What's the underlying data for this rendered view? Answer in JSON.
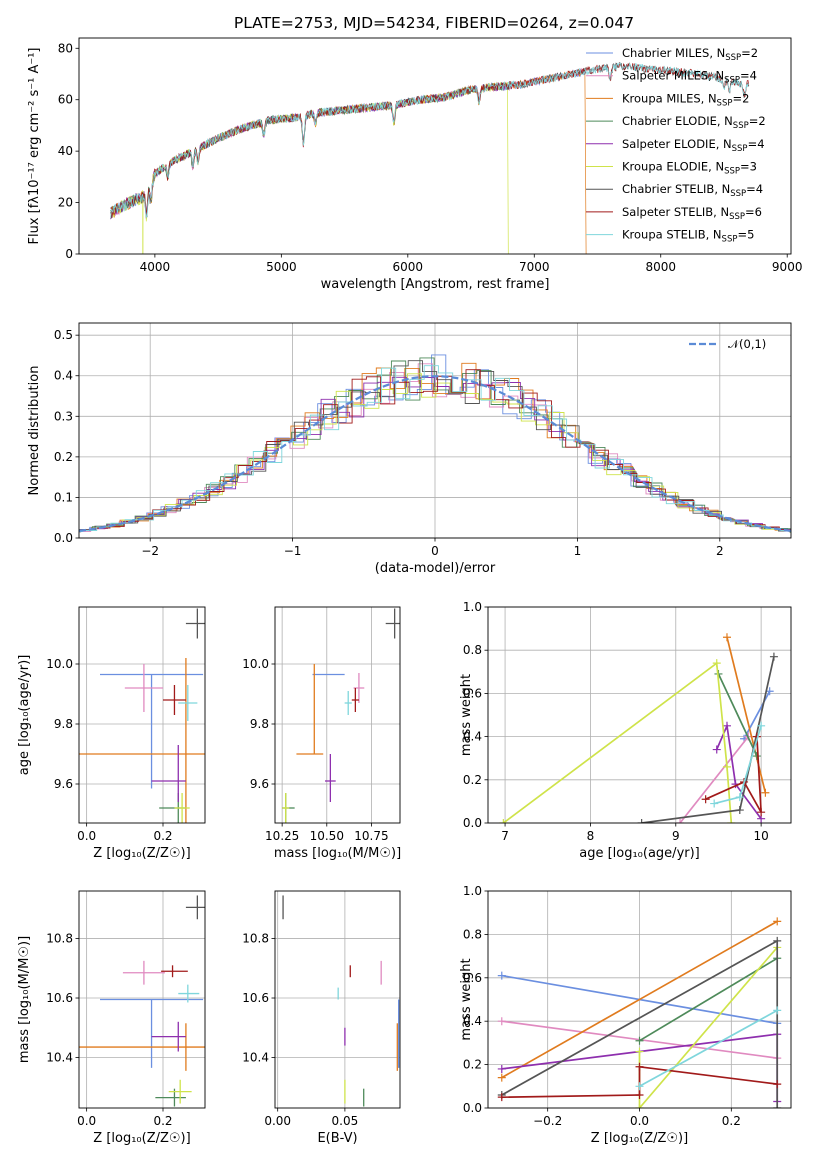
{
  "title": "PLATE=2753, MJD=54234, FIBERID=0264, z=0.047",
  "colors": {
    "Chabrier MILES": "#6b8fe0",
    "Salpeter MILES": "#e08ac0",
    "Kroupa MILES": "#e07b1e",
    "Chabrier ELODIE": "#4e8a5a",
    "Salpeter ELODIE": "#8e2fae",
    "Kroupa ELODIE": "#cfe34a",
    "Chabrier STELIB": "#555555",
    "Salpeter STELIB": "#a11a1a",
    "Kroupa STELIB": "#7fd6dc",
    "normal": "#5b8bd6"
  },
  "chart_data": [
    {
      "id": "spectrum",
      "type": "line",
      "xlabel": "wavelength [Angstrom, rest frame]",
      "ylabel": "Flux [fλ10⁻¹⁷ erg cm⁻² s⁻¹ A⁻¹]",
      "xlim": [
        3400,
        9030
      ],
      "ylim": [
        0,
        84
      ],
      "xticks": [
        4000,
        5000,
        6000,
        7000,
        8000,
        9000
      ],
      "yticks": [
        0,
        20,
        40,
        60,
        80
      ],
      "grid": false,
      "legend": "top-right",
      "continuum": [
        [
          3650,
          16
        ],
        [
          3800,
          20
        ],
        [
          3900,
          22
        ],
        [
          4000,
          31
        ],
        [
          4100,
          35
        ],
        [
          4300,
          40
        ],
        [
          4500,
          45
        ],
        [
          4700,
          49
        ],
        [
          4900,
          52
        ],
        [
          5100,
          53
        ],
        [
          5300,
          55
        ],
        [
          5500,
          56
        ],
        [
          5700,
          57
        ],
        [
          5900,
          58
        ],
        [
          6100,
          60
        ],
        [
          6300,
          61
        ],
        [
          6500,
          64
        ],
        [
          6700,
          65
        ],
        [
          6900,
          66
        ],
        [
          7100,
          68
        ],
        [
          7300,
          70
        ],
        [
          7500,
          72
        ],
        [
          7700,
          73
        ],
        [
          7900,
          72
        ],
        [
          8100,
          71
        ],
        [
          8300,
          70
        ],
        [
          8500,
          68
        ],
        [
          8650,
          66
        ]
      ],
      "features": [
        [
          3934,
          -10
        ],
        [
          3969,
          -8
        ],
        [
          4102,
          -5
        ],
        [
          4300,
          -6
        ],
        [
          4341,
          -5
        ],
        [
          4861,
          -5
        ],
        [
          5175,
          -11
        ],
        [
          5270,
          -4
        ],
        [
          5890,
          -7
        ],
        [
          6563,
          -5
        ],
        [
          7600,
          -4
        ],
        [
          8500,
          -4
        ],
        [
          8542,
          -4
        ],
        [
          8662,
          -4
        ]
      ],
      "series": [
        {
          "name": "Chabrier MILES",
          "nssp": "2",
          "xmax": 7400
        },
        {
          "name": "Salpeter MILES",
          "nssp": "4",
          "xmax": 7400
        },
        {
          "name": "Kroupa MILES",
          "nssp": "2",
          "xmax": 7400,
          "drop": 7410
        },
        {
          "name": "Chabrier ELODIE",
          "nssp": "2",
          "xmax": 6790
        },
        {
          "name": "Salpeter ELODIE",
          "nssp": "4",
          "xmax": 6790
        },
        {
          "name": "Kroupa ELODIE",
          "nssp": "3",
          "xmax": 6790,
          "drop": 6795,
          "dropStart": 3905
        },
        {
          "name": "Chabrier STELIB",
          "nssp": "4",
          "xmax": 8700
        },
        {
          "name": "Salpeter STELIB",
          "nssp": "6",
          "xmax": 8700
        },
        {
          "name": "Kroupa STELIB",
          "nssp": "5",
          "xmax": 8700
        }
      ]
    },
    {
      "id": "residuals",
      "type": "histogram",
      "xlabel": "(data-model)/error",
      "ylabel": "Normed distribution",
      "xlim": [
        -2.5,
        2.5
      ],
      "ylim": [
        0,
        0.53
      ],
      "xticks": [
        -2,
        -1,
        0,
        1,
        2
      ],
      "yticks": [
        0.0,
        0.1,
        0.2,
        0.3,
        0.4,
        0.5
      ],
      "grid": true,
      "legend": "top-right",
      "bin_width": 0.1,
      "reference": {
        "name": "𝒩(0,1)",
        "mean": 0,
        "sigma": 1
      },
      "note": "nine step histograms, one per model, scattered around the 𝒩(0,1) curve"
    },
    {
      "id": "age-vs-Z",
      "type": "errorbar",
      "xlabel": "Z [log₁₀(Z/Z☉)]",
      "ylabel": "age  [log₁₀(age/yr)]",
      "xlim": [
        -0.02,
        0.31
      ],
      "ylim": [
        9.47,
        10.19
      ],
      "xticks": [
        0.0,
        0.2
      ],
      "yticks": [
        9.6,
        9.8,
        10.0
      ],
      "grid": true,
      "points": [
        {
          "model": "Chabrier MILES",
          "x": 0.17,
          "y": 9.965,
          "xerr": [
            0.135,
            0.135
          ],
          "yerr": [
            0.38,
            0
          ]
        },
        {
          "model": "Salpeter MILES",
          "x": 0.15,
          "y": 9.92,
          "xerr": [
            0.05,
            0.05
          ],
          "yerr": [
            0.08,
            0.08
          ]
        },
        {
          "model": "Kroupa MILES",
          "x": 0.26,
          "y": 9.7,
          "xerr": [
            0.28,
            0.05
          ],
          "yerr": [
            0.28,
            0.32
          ]
        },
        {
          "model": "Chabrier ELODIE",
          "x": 0.24,
          "y": 9.52,
          "xerr": [
            0.05,
            0.02
          ],
          "yerr": [
            0.06,
            0.05
          ]
        },
        {
          "model": "Salpeter ELODIE",
          "x": 0.24,
          "y": 9.61,
          "xerr": [
            0.07,
            0.02
          ],
          "yerr": [
            0.07,
            0.12
          ]
        },
        {
          "model": "Kroupa ELODIE",
          "x": 0.25,
          "y": 9.52,
          "xerr": [
            0.02,
            0.02
          ],
          "yerr": [
            0.05,
            0.05
          ]
        },
        {
          "model": "Chabrier STELIB",
          "x": 0.29,
          "y": 10.135,
          "xerr": [
            0.03,
            0.02
          ],
          "yerr": [
            0.05,
            0.05
          ]
        },
        {
          "model": "Salpeter STELIB",
          "x": 0.23,
          "y": 9.88,
          "xerr": [
            0.03,
            0.03
          ],
          "yerr": [
            0.05,
            0.05
          ]
        },
        {
          "model": "Kroupa STELIB",
          "x": 0.265,
          "y": 9.87,
          "xerr": [
            0.025,
            0.025
          ],
          "yerr": [
            0.06,
            0.06
          ]
        }
      ]
    },
    {
      "id": "age-vs-mass",
      "type": "errorbar",
      "xlabel": "mass [log₁₀(M/M☉)]",
      "xlim": [
        10.21,
        10.91
      ],
      "ylim": [
        9.47,
        10.19
      ],
      "xticks": [
        10.25,
        10.5,
        10.75
      ],
      "yticks": [
        9.6,
        9.8,
        10.0
      ],
      "grid": true,
      "points": [
        {
          "model": "Chabrier MILES",
          "x": 10.6,
          "y": 9.965,
          "xerr": [
            0.18,
            0
          ],
          "yerr": [
            0.0,
            0
          ]
        },
        {
          "model": "Salpeter MILES",
          "x": 10.68,
          "y": 9.92,
          "xerr": [
            0.03,
            0.03
          ],
          "yerr": [
            0.05,
            0.05
          ]
        },
        {
          "model": "Kroupa MILES",
          "x": 10.43,
          "y": 9.7,
          "xerr": [
            0.1,
            0.05
          ],
          "yerr": [
            0.0,
            0.3
          ]
        },
        {
          "model": "Chabrier ELODIE",
          "x": 10.27,
          "y": 9.52,
          "xerr": [
            0.02,
            0.05
          ],
          "yerr": [
            0.05,
            0.05
          ]
        },
        {
          "model": "Salpeter ELODIE",
          "x": 10.52,
          "y": 9.61,
          "xerr": [
            0.03,
            0.03
          ],
          "yerr": [
            0.07,
            0.09
          ]
        },
        {
          "model": "Kroupa ELODIE",
          "x": 10.27,
          "y": 9.52,
          "xerr": [
            0.02,
            0.02
          ],
          "yerr": [
            0.05,
            0.05
          ]
        },
        {
          "model": "Chabrier STELIB",
          "x": 10.88,
          "y": 10.135,
          "xerr": [
            0.05,
            0.05
          ],
          "yerr": [
            0.05,
            0.05
          ]
        },
        {
          "model": "Salpeter STELIB",
          "x": 10.66,
          "y": 9.88,
          "xerr": [
            0.02,
            0.02
          ],
          "yerr": [
            0.04,
            0.04
          ]
        },
        {
          "model": "Kroupa STELIB",
          "x": 10.62,
          "y": 9.87,
          "xerr": [
            0.02,
            0.02
          ],
          "yerr": [
            0.04,
            0.04
          ]
        }
      ]
    },
    {
      "id": "weight-vs-age",
      "type": "line",
      "xlabel": "age  [log₁₀(age/yr)]",
      "ylabel": "mass weight",
      "xlim": [
        6.8,
        10.35
      ],
      "ylim": [
        0,
        1.0
      ],
      "xticks": [
        7,
        8,
        9,
        10
      ],
      "yticks": [
        0.0,
        0.2,
        0.4,
        0.6,
        0.8,
        1.0
      ],
      "grid": true,
      "series": [
        {
          "name": "Chabrier MILES",
          "x": [
            9.8,
            10.1
          ],
          "y": [
            0.39,
            0.61
          ]
        },
        {
          "name": "Salpeter MILES",
          "x": [
            9.05,
            9.85
          ],
          "y": [
            0.0,
            0.4
          ]
        },
        {
          "name": "Kroupa MILES",
          "x": [
            9.6,
            10.05
          ],
          "y": [
            0.86,
            0.14
          ]
        },
        {
          "name": "Chabrier ELODIE",
          "x": [
            9.5,
            9.95
          ],
          "y": [
            0.69,
            0.31
          ]
        },
        {
          "name": "Salpeter ELODIE",
          "x": [
            9.48,
            9.6,
            9.7,
            10.0
          ],
          "y": [
            0.34,
            0.45,
            0.18,
            0.02
          ]
        },
        {
          "name": "Kroupa ELODIE",
          "x": [
            6.98,
            9.48,
            9.6,
            9.65
          ],
          "y": [
            0.0,
            0.74,
            0.26,
            0.0
          ]
        },
        {
          "name": "Chabrier STELIB",
          "x": [
            8.6,
            9.75,
            10.15
          ],
          "y": [
            0.0,
            0.06,
            0.77
          ]
        },
        {
          "name": "Salpeter STELIB",
          "x": [
            9.35,
            9.8,
            10.0,
            9.95
          ],
          "y": [
            0.11,
            0.19,
            0.05,
            0.4
          ]
        },
        {
          "name": "Kroupa STELIB",
          "x": [
            9.45,
            9.75,
            10.0
          ],
          "y": [
            0.09,
            0.12,
            0.45
          ]
        }
      ]
    },
    {
      "id": "mass-vs-Z",
      "type": "errorbar",
      "xlabel": "Z [log₁₀(Z/Z☉)]",
      "ylabel": "mass [log₁₀(M/M☉)]",
      "xlim": [
        -0.02,
        0.31
      ],
      "ylim": [
        10.23,
        10.96
      ],
      "xticks": [
        0.0,
        0.2
      ],
      "yticks": [
        10.4,
        10.6,
        10.8
      ],
      "grid": true,
      "points": [
        {
          "model": "Chabrier MILES",
          "x": 0.17,
          "y": 10.595,
          "xerr": [
            0.135,
            0.135
          ],
          "yerr": [
            0.23,
            0
          ]
        },
        {
          "model": "Salpeter MILES",
          "x": 0.15,
          "y": 10.685,
          "xerr": [
            0.055,
            0.055
          ],
          "yerr": [
            0.04,
            0.04
          ]
        },
        {
          "model": "Kroupa MILES",
          "x": 0.26,
          "y": 10.435,
          "xerr": [
            0.28,
            0.05
          ],
          "yerr": [
            0.08,
            0.08
          ]
        },
        {
          "model": "Chabrier ELODIE",
          "x": 0.23,
          "y": 10.265,
          "xerr": [
            0.05,
            0.03
          ],
          "yerr": [
            0.03,
            0.03
          ]
        },
        {
          "model": "Salpeter ELODIE",
          "x": 0.24,
          "y": 10.47,
          "xerr": [
            0.07,
            0.02
          ],
          "yerr": [
            0.05,
            0.05
          ]
        },
        {
          "model": "Kroupa ELODIE",
          "x": 0.245,
          "y": 10.285,
          "xerr": [
            0.03,
            0.03
          ],
          "yerr": [
            0.04,
            0.04
          ]
        },
        {
          "model": "Chabrier STELIB",
          "x": 0.29,
          "y": 10.905,
          "xerr": [
            0.03,
            0.02
          ],
          "yerr": [
            0.04,
            0.04
          ]
        },
        {
          "model": "Salpeter STELIB",
          "x": 0.225,
          "y": 10.69,
          "xerr": [
            0.03,
            0.04
          ],
          "yerr": [
            0.02,
            0.02
          ]
        },
        {
          "model": "Kroupa STELIB",
          "x": 0.265,
          "y": 10.615,
          "xerr": [
            0.025,
            0.03
          ],
          "yerr": [
            0.03,
            0.03
          ]
        }
      ]
    },
    {
      "id": "mass-vs-EBV",
      "type": "errorbar",
      "xlabel": "E(B-V)",
      "xlim": [
        -0.002,
        0.091
      ],
      "ylim": [
        10.23,
        10.96
      ],
      "xticks": [
        0.0,
        0.05
      ],
      "yticks": [
        10.4,
        10.6,
        10.8
      ],
      "grid": true,
      "points": [
        {
          "model": "Chabrier MILES",
          "x": 0.09,
          "y": 10.595,
          "xerr": [
            0,
            0
          ],
          "yerr": [
            0.23,
            0
          ]
        },
        {
          "model": "Salpeter MILES",
          "x": 0.077,
          "y": 10.685,
          "xerr": [
            0,
            0
          ],
          "yerr": [
            0.04,
            0.04
          ]
        },
        {
          "model": "Kroupa MILES",
          "x": 0.089,
          "y": 10.435,
          "xerr": [
            0,
            0
          ],
          "yerr": [
            0.08,
            0.08
          ]
        },
        {
          "model": "Chabrier ELODIE",
          "x": 0.064,
          "y": 10.265,
          "xerr": [
            0,
            0
          ],
          "yerr": [
            0.03,
            0.03
          ]
        },
        {
          "model": "Salpeter ELODIE",
          "x": 0.05,
          "y": 10.47,
          "xerr": [
            0,
            0
          ],
          "yerr": [
            0.03,
            0.03
          ]
        },
        {
          "model": "Kroupa ELODIE",
          "x": 0.05,
          "y": 10.285,
          "xerr": [
            0,
            0
          ],
          "yerr": [
            0.04,
            0.04
          ]
        },
        {
          "model": "Chabrier STELIB",
          "x": 0.004,
          "y": 10.905,
          "xerr": [
            0,
            0
          ],
          "yerr": [
            0.04,
            0.04
          ]
        },
        {
          "model": "Salpeter STELIB",
          "x": 0.054,
          "y": 10.69,
          "xerr": [
            0,
            0
          ],
          "yerr": [
            0.02,
            0.02
          ]
        },
        {
          "model": "Kroupa STELIB",
          "x": 0.045,
          "y": 10.615,
          "xerr": [
            0,
            0
          ],
          "yerr": [
            0.02,
            0.02
          ]
        }
      ]
    },
    {
      "id": "weight-vs-Z",
      "type": "line",
      "xlabel": "Z [log₁₀(Z/Z☉)]",
      "ylabel": "mass weight",
      "xlim": [
        -0.33,
        0.33
      ],
      "ylim": [
        0,
        1.0
      ],
      "xticks": [
        -0.2,
        0.0,
        0.2
      ],
      "yticks": [
        0.0,
        0.2,
        0.4,
        0.6,
        0.8,
        1.0
      ],
      "grid": true,
      "series": [
        {
          "name": "Chabrier MILES",
          "x": [
            -0.3,
            0.3
          ],
          "y": [
            0.61,
            0.39
          ]
        },
        {
          "name": "Salpeter MILES",
          "x": [
            -0.3,
            0.3
          ],
          "y": [
            0.4,
            0.23
          ]
        },
        {
          "name": "Kroupa MILES",
          "x": [
            -0.3,
            0.3
          ],
          "y": [
            0.14,
            0.86
          ]
        },
        {
          "name": "Chabrier ELODIE",
          "x": [
            0.0,
            0.3
          ],
          "y": [
            0.31,
            0.69
          ]
        },
        {
          "name": "Salpeter ELODIE",
          "x": [
            -0.3,
            0.3,
            0.3
          ],
          "y": [
            0.18,
            0.34,
            0.03
          ]
        },
        {
          "name": "Kroupa ELODIE",
          "x": [
            0.0,
            0.0,
            0.3
          ],
          "y": [
            0.26,
            0.0,
            0.74
          ]
        },
        {
          "name": "Chabrier STELIB",
          "x": [
            -0.3,
            0.3,
            0.3
          ],
          "y": [
            0.06,
            0.77,
            0.0
          ]
        },
        {
          "name": "Salpeter STELIB",
          "x": [
            -0.3,
            0.0,
            0.0,
            0.3
          ],
          "y": [
            0.05,
            0.06,
            0.19,
            0.11
          ]
        },
        {
          "name": "Kroupa STELIB",
          "x": [
            0.0,
            0.3
          ],
          "y": [
            0.1,
            0.45
          ]
        }
      ]
    }
  ]
}
